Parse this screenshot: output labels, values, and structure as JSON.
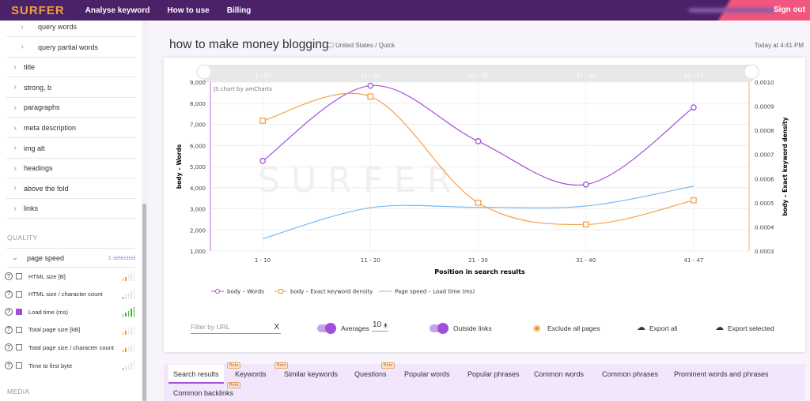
{
  "header": {
    "logo": "SURFER",
    "nav": [
      "Analyse keyword",
      "How to use",
      "Billing"
    ],
    "sign_out": "Sign out"
  },
  "sidebar": {
    "items": [
      {
        "label": "query words",
        "indent": true
      },
      {
        "label": "query partial words",
        "indent": true
      },
      {
        "label": "title"
      },
      {
        "label": "strong, b"
      },
      {
        "label": "paragraphs"
      },
      {
        "label": "meta description"
      },
      {
        "label": "img alt"
      },
      {
        "label": "headings"
      },
      {
        "label": "above the fold"
      },
      {
        "label": "links"
      }
    ],
    "quality_heading": "QUALITY",
    "group": {
      "label": "page speed",
      "selected": "1 selected"
    },
    "metrics": [
      {
        "label": "HTML size [B]",
        "checked": false,
        "level": 2,
        "color": "#f09a2a"
      },
      {
        "label": "HTML size / character count",
        "checked": false,
        "level": 1,
        "color": "#e0453a"
      },
      {
        "label": "Load time (ms)",
        "checked": true,
        "level": 5,
        "color": "#3fb33f"
      },
      {
        "label": "Total page size [kB]",
        "checked": false,
        "level": 2,
        "color": "#f09a2a"
      },
      {
        "label": "Total page size / character count",
        "checked": false,
        "level": 2,
        "color": "#f09a2a"
      },
      {
        "label": "Time to first byte",
        "checked": false,
        "level": 1,
        "color": "#e0453a"
      }
    ],
    "media_heading": "MEDIA",
    "help_glyph": "?"
  },
  "main": {
    "title": "how to make money blogging",
    "location": "United States / Quick",
    "timestamp": "Today at 4:41 PM"
  },
  "chart_data": {
    "type": "line",
    "credit": "JS chart by amCharts",
    "watermark": "SURFER",
    "categories": [
      "1 - 10",
      "11 - 20",
      "21 - 30",
      "31 - 40",
      "41 - 47"
    ],
    "xlabel": "Position in search results",
    "ylabel": "body – Words",
    "y2label": "body – Exact keyword density",
    "ylim": [
      1000,
      9000
    ],
    "yticks": [
      "1,000",
      "2,000",
      "3,000",
      "4,000",
      "5,000",
      "6,000",
      "7,000",
      "8,000",
      "9,000"
    ],
    "y2lim": [
      0.0003,
      0.001
    ],
    "y2ticks": [
      "0.0003",
      "0.0004",
      "0.0005",
      "0.0006",
      "0.0007",
      "0.0008",
      "0.0009",
      "0.0010"
    ],
    "series": [
      {
        "name": "body – Words",
        "axis": "left",
        "color": "#a34fdc",
        "marker": "circle",
        "values": [
          5270,
          8830,
          6200,
          4150,
          7800
        ]
      },
      {
        "name": "body – Exact keyword density",
        "axis": "right",
        "color": "#f5a14a",
        "marker": "square",
        "values": [
          0.00084,
          0.00094,
          0.0005,
          0.00041,
          0.00051
        ]
      },
      {
        "name": "Page speed – Load time (ms)",
        "axis": "left",
        "color": "#7ab8f5",
        "marker": "none",
        "values": [
          1580,
          3050,
          3070,
          3130,
          4070
        ]
      }
    ],
    "grid": true,
    "legend": "bottom-left"
  },
  "controls": {
    "filter_placeholder": "Filter by URL",
    "clear": "X",
    "averages_label": "Averages",
    "averages_value": "10",
    "outside_links": "Outside links",
    "exclude": "Exclude all pages",
    "export_all": "Export all",
    "export_selected": "Export selected"
  },
  "tabs": {
    "items": [
      "Search results",
      "Keywords",
      "Similar keywords",
      "Questions",
      "Popular words",
      "Popular phrases",
      "Common words",
      "Common phrases",
      "Prominent words and phrases",
      "Common backlinks"
    ],
    "beta": "Beta"
  }
}
